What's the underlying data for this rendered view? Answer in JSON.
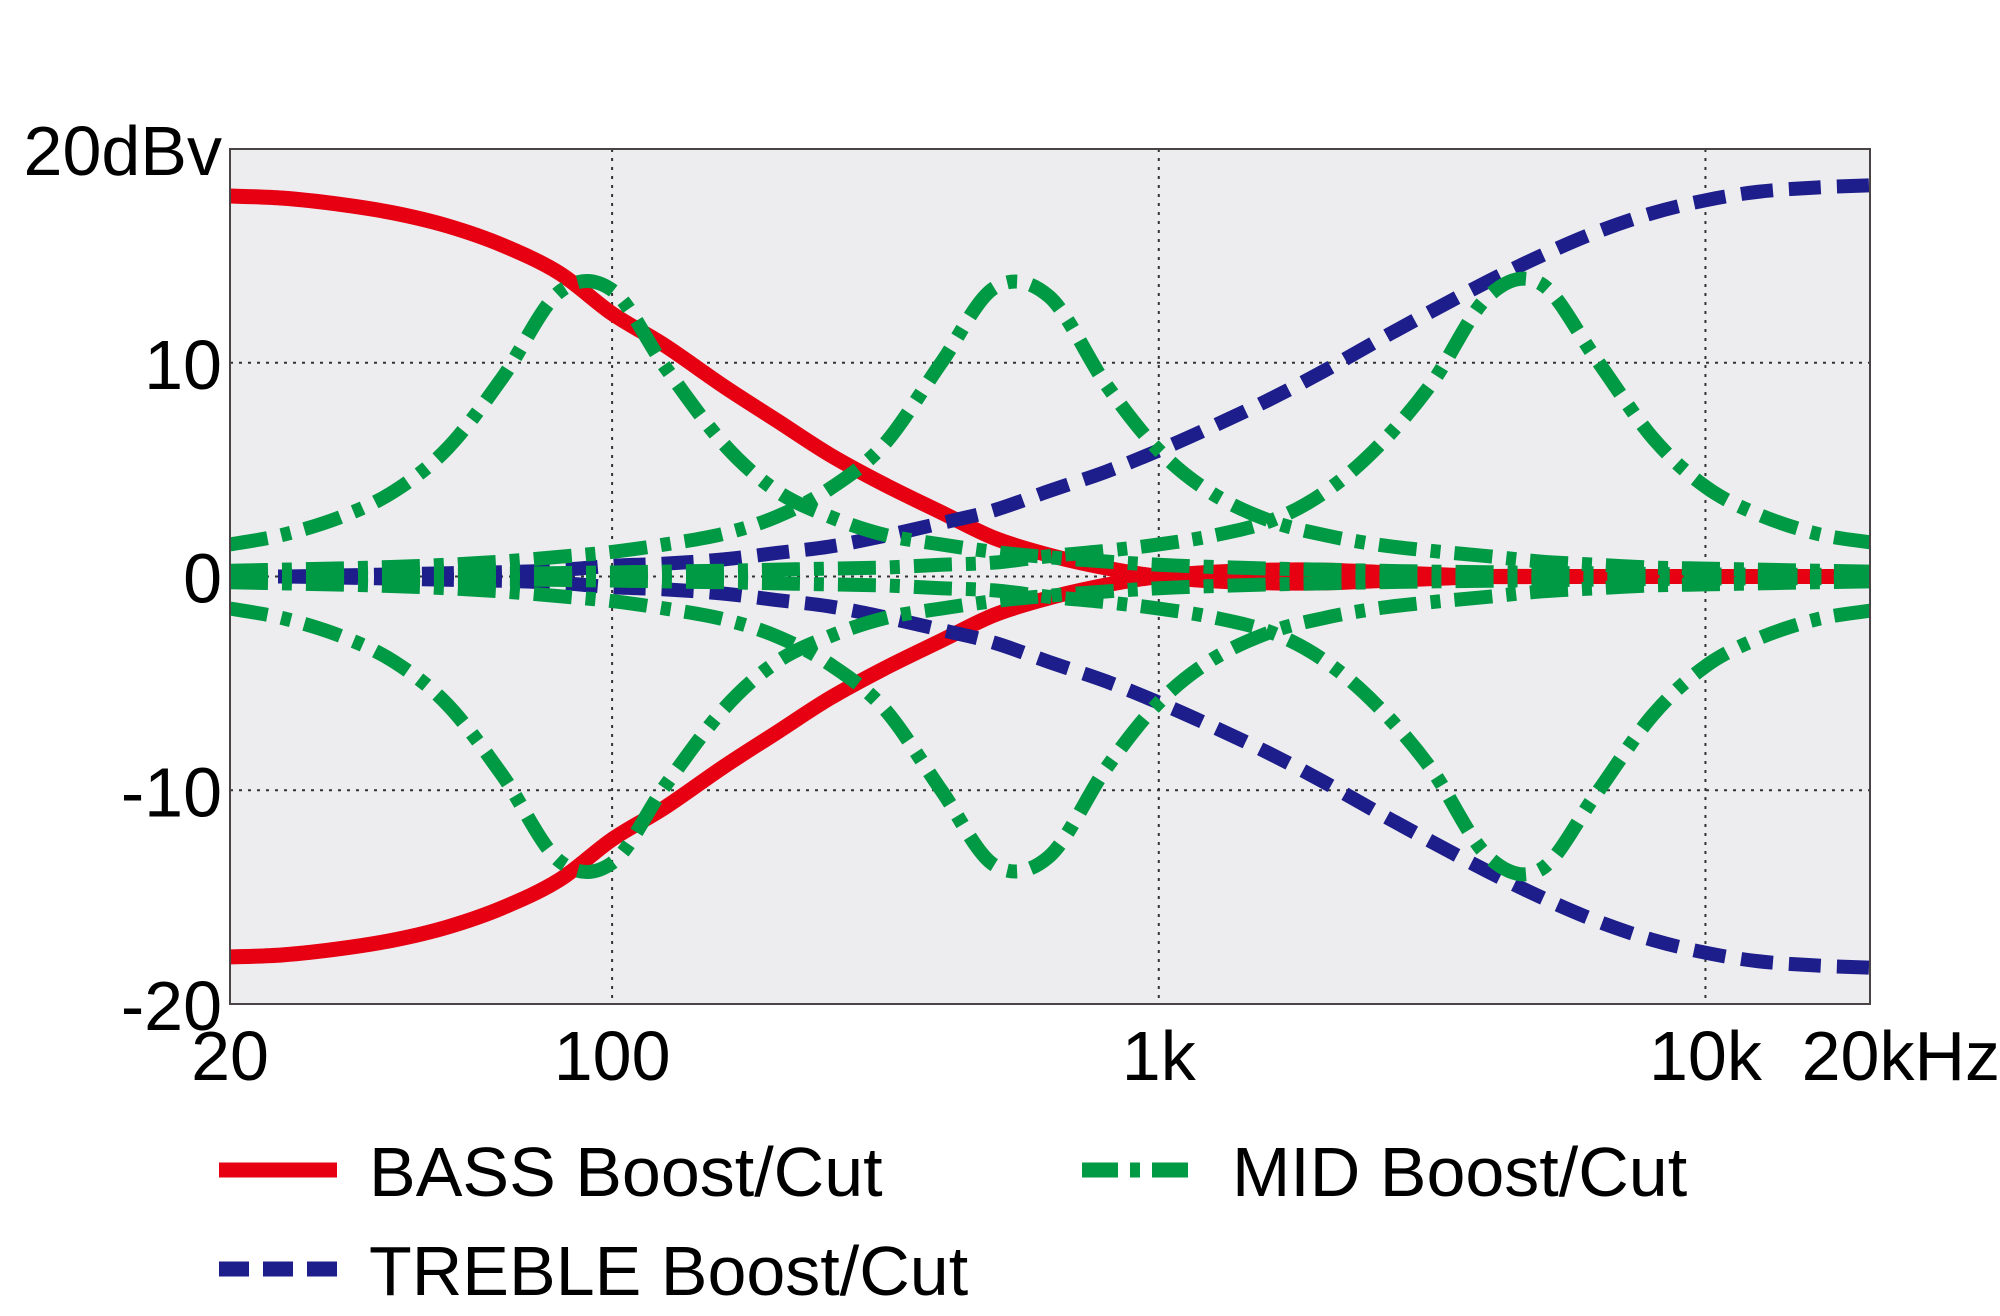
{
  "chart_data": {
    "type": "line",
    "title": "",
    "xlabel": "",
    "ylabel": "",
    "x_scale": "log",
    "xlim": [
      20,
      20000
    ],
    "ylim": [
      -20,
      20
    ],
    "grid": true,
    "legend_placement": "bottom",
    "background": "#ededef",
    "x_ticks": [
      {
        "value": 20,
        "label": "20"
      },
      {
        "value": 100,
        "label": "100"
      },
      {
        "value": 1000,
        "label": "1k"
      },
      {
        "value": 10000,
        "label": "10k"
      },
      {
        "value": 20000,
        "label": "20kHz"
      }
    ],
    "y_ticks": [
      {
        "value": 20,
        "label": "20dBv"
      },
      {
        "value": 10,
        "label": "10"
      },
      {
        "value": 0,
        "label": "0"
      },
      {
        "value": -10,
        "label": "-10"
      },
      {
        "value": -20,
        "label": "-20"
      }
    ],
    "x": [
      20,
      25,
      32,
      40,
      50,
      63,
      80,
      100,
      125,
      160,
      200,
      250,
      315,
      400,
      500,
      630,
      800,
      1000,
      1250,
      1600,
      2000,
      2500,
      3150,
      4000,
      5000,
      6300,
      8000,
      10000,
      12500,
      16000,
      20000
    ],
    "legend": [
      {
        "name": "BASS Boost/Cut",
        "color": "#e60012",
        "style": "solid"
      },
      {
        "name": "MID Boost/Cut",
        "color": "#009a44",
        "style": "dash-dot"
      },
      {
        "name": "TREBLE Boost/Cut",
        "color": "#1d1d8c",
        "style": "dashed"
      }
    ],
    "series": [
      {
        "group": "BASS Boost/Cut",
        "color": "#e60012",
        "style": "solid",
        "values": [
          17.8,
          17.7,
          17.4,
          17,
          16.4,
          15.5,
          14.2,
          12.3,
          10.8,
          8.9,
          7.3,
          5.7,
          4.3,
          3,
          1.8,
          1,
          0.4,
          0,
          -0.2,
          -0.3,
          -0.3,
          -0.2,
          -0.1,
          0,
          0,
          0,
          0,
          0,
          0,
          0,
          0
        ]
      },
      {
        "group": "BASS Boost/Cut",
        "color": "#e60012",
        "style": "solid",
        "values": [
          -17.8,
          -17.7,
          -17.4,
          -17,
          -16.4,
          -15.5,
          -14.2,
          -12.3,
          -10.8,
          -8.9,
          -7.3,
          -5.7,
          -4.3,
          -3,
          -1.8,
          -1,
          -0.4,
          0,
          0.2,
          0.3,
          0.3,
          0.2,
          0.1,
          0,
          0,
          0,
          0,
          0,
          0,
          0,
          0
        ]
      },
      {
        "group": "TREBLE Boost/Cut",
        "color": "#1d1d8c",
        "style": "dashed",
        "values": [
          0,
          0,
          0.05,
          0.1,
          0.15,
          0.2,
          0.3,
          0.5,
          0.6,
          0.8,
          1.1,
          1.4,
          1.9,
          2.5,
          3.1,
          4,
          4.9,
          5.9,
          7,
          8.3,
          9.6,
          11,
          12.4,
          13.8,
          15,
          16.1,
          17,
          17.6,
          18,
          18.2,
          18.3
        ]
      },
      {
        "group": "TREBLE Boost/Cut",
        "color": "#1d1d8c",
        "style": "dashed",
        "values": [
          0,
          0,
          -0.05,
          -0.1,
          -0.15,
          -0.2,
          -0.3,
          -0.5,
          -0.6,
          -0.8,
          -1.1,
          -1.4,
          -1.9,
          -2.5,
          -3.1,
          -4,
          -4.9,
          -5.9,
          -7,
          -8.3,
          -9.6,
          -11,
          -12.4,
          -13.8,
          -15,
          -16.1,
          -17,
          -17.6,
          -18,
          -18.2,
          -18.3
        ]
      },
      {
        "group": "MID Boost/Cut",
        "color": "#009a44",
        "style": "dash-dot",
        "values": [
          1.5,
          1.95,
          2.8,
          4,
          6,
          9.3,
          13.3,
          13.4,
          9.8,
          6.2,
          4,
          2.8,
          1.95,
          1.5,
          1.15,
          0.9,
          0.7,
          0.55,
          0.45,
          0.37,
          0.32,
          0.27,
          0.23,
          0.2,
          0.17,
          0.15,
          0.12,
          0.1,
          0.09,
          0.08,
          0.07
        ]
      },
      {
        "group": "MID Boost/Cut",
        "color": "#009a44",
        "style": "dash-dot",
        "values": [
          -1.5,
          -1.95,
          -2.8,
          -4,
          -6,
          -9.3,
          -13.3,
          -13.4,
          -9.8,
          -6.2,
          -4,
          -2.8,
          -1.95,
          -1.5,
          -1.15,
          -0.9,
          -0.7,
          -0.55,
          -0.45,
          -0.37,
          -0.32,
          -0.27,
          -0.23,
          -0.2,
          -0.17,
          -0.15,
          -0.12,
          -0.1,
          -0.09,
          -0.08,
          -0.07
        ]
      },
      {
        "group": "MID Boost/Cut",
        "color": "#009a44",
        "style": "dash-dot",
        "values": [
          0.27,
          0.32,
          0.38,
          0.45,
          0.55,
          0.7,
          0.92,
          1.15,
          1.5,
          2,
          2.8,
          4.1,
          6.2,
          10,
          13.5,
          13.1,
          9,
          5.9,
          3.9,
          2.6,
          1.95,
          1.5,
          1.2,
          0.95,
          0.7,
          0.55,
          0.42,
          0.37,
          0.32,
          0.27,
          0.23
        ]
      },
      {
        "group": "MID Boost/Cut",
        "color": "#009a44",
        "style": "dash-dot",
        "values": [
          -0.27,
          -0.32,
          -0.38,
          -0.45,
          -0.55,
          -0.7,
          -0.92,
          -1.15,
          -1.5,
          -2,
          -2.8,
          -4.1,
          -6.2,
          -10,
          -13.5,
          -13.1,
          -9,
          -5.9,
          -3.9,
          -2.6,
          -1.95,
          -1.5,
          -1.2,
          -0.95,
          -0.7,
          -0.55,
          -0.42,
          -0.37,
          -0.32,
          -0.27,
          -0.23
        ]
      },
      {
        "group": "MID Boost/Cut",
        "color": "#009a44",
        "style": "dash-dot",
        "values": [
          0.05,
          0.06,
          0.07,
          0.08,
          0.1,
          0.13,
          0.16,
          0.19,
          0.23,
          0.27,
          0.32,
          0.37,
          0.42,
          0.55,
          0.65,
          0.95,
          1.2,
          1.5,
          1.9,
          2.6,
          3.9,
          6,
          9,
          13.1,
          13.7,
          10.2,
          6.5,
          4.2,
          2.9,
          2,
          1.6
        ]
      },
      {
        "group": "MID Boost/Cut",
        "color": "#009a44",
        "style": "dash-dot",
        "values": [
          -0.05,
          -0.06,
          -0.07,
          -0.08,
          -0.1,
          -0.13,
          -0.16,
          -0.19,
          -0.23,
          -0.27,
          -0.32,
          -0.37,
          -0.42,
          -0.55,
          -0.65,
          -0.95,
          -1.2,
          -1.5,
          -1.9,
          -2.6,
          -3.9,
          -6,
          -9,
          -13.1,
          -13.7,
          -10.2,
          -6.5,
          -4.2,
          -2.9,
          -2,
          -1.6
        ]
      }
    ]
  }
}
